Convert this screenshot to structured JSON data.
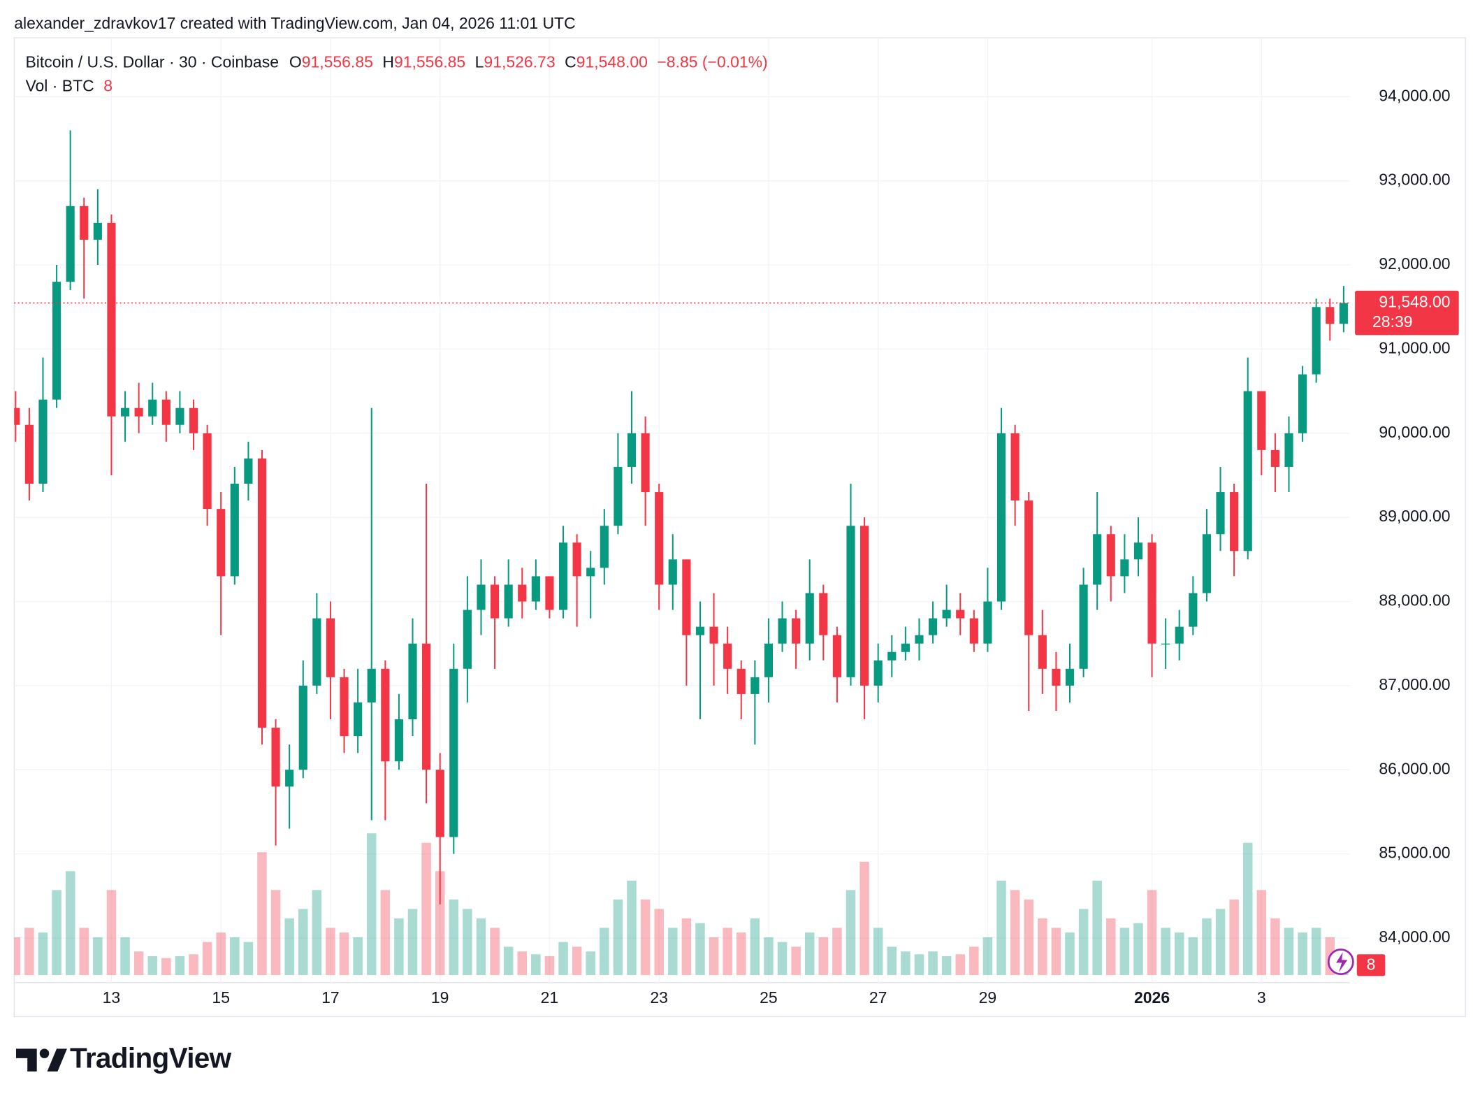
{
  "header": {
    "attribution": "alexander_zdravkov17 created with TradingView.com, Jan 04, 2026 11:01 UTC",
    "symbol": "Bitcoin / U.S. Dollar · 30 · Coinbase",
    "ohlc": [
      {
        "key": "O",
        "value": "91,556.85"
      },
      {
        "key": "H",
        "value": "91,556.85"
      },
      {
        "key": "L",
        "value": "91,526.73"
      },
      {
        "key": "C",
        "value": "91,548.00"
      }
    ],
    "change": "−8.85 (−0.01%)",
    "volume_title": "Vol · BTC"
  },
  "chart_data": {
    "type": "candlestick",
    "categories": [
      null,
      null,
      null,
      null,
      null,
      null,
      null,
      "13",
      null,
      null,
      null,
      null,
      null,
      null,
      null,
      "15",
      null,
      null,
      null,
      null,
      null,
      null,
      null,
      "17",
      null,
      null,
      null,
      null,
      null,
      null,
      null,
      "19",
      null,
      null,
      null,
      null,
      null,
      null,
      null,
      "21",
      null,
      null,
      null,
      null,
      null,
      null,
      null,
      "23",
      null,
      null,
      null,
      null,
      null,
      null,
      null,
      "25",
      null,
      null,
      null,
      null,
      null,
      null,
      null,
      "27",
      null,
      null,
      null,
      null,
      null,
      null,
      null,
      "29",
      null,
      null,
      null,
      null,
      null,
      null,
      null,
      null,
      null,
      null,
      null,
      "2026",
      null,
      null,
      null,
      null,
      null,
      null,
      null,
      "3",
      null,
      null,
      null,
      null,
      null,
      null
    ],
    "open": [
      90300,
      90100,
      89400,
      90400,
      91800,
      92700,
      92300,
      92500,
      90200,
      90300,
      90200,
      90400,
      90100,
      90300,
      90000,
      89100,
      88300,
      89400,
      89700,
      86500,
      85800,
      86000,
      87000,
      87800,
      87100,
      86400,
      86800,
      87200,
      86100,
      86600,
      87500,
      86000,
      85200,
      87200,
      87900,
      88200,
      87800,
      88200,
      88000,
      88300,
      87900,
      88700,
      88300,
      88400,
      88900,
      89600,
      90000,
      89300,
      88200,
      88500,
      87600,
      87700,
      87500,
      87200,
      86900,
      87100,
      87500,
      87800,
      87500,
      88100,
      87600,
      87100,
      88900,
      87000,
      87300,
      87400,
      87500,
      87600,
      87800,
      87900,
      87800,
      87500,
      88000,
      90000,
      89200,
      87600,
      87200,
      87000,
      87200,
      88200,
      88800,
      88300,
      88500,
      88700,
      87500,
      87500,
      87700,
      88100,
      88800,
      89300,
      88600,
      90500,
      89800,
      89600,
      90000,
      90700,
      91500,
      91300
    ],
    "high": [
      90500,
      90300,
      90900,
      92000,
      93600,
      92800,
      92900,
      92600,
      90500,
      90600,
      90600,
      90500,
      90500,
      90400,
      90100,
      89300,
      89600,
      89900,
      89800,
      86600,
      86300,
      87300,
      88100,
      88000,
      87200,
      87200,
      90300,
      87300,
      86900,
      87800,
      89400,
      86200,
      87500,
      88300,
      88500,
      88300,
      88500,
      88400,
      88500,
      88300,
      88900,
      88800,
      88600,
      89100,
      90000,
      90500,
      90200,
      89400,
      88800,
      88500,
      88000,
      88100,
      87700,
      87300,
      87300,
      87800,
      88000,
      87900,
      88500,
      88200,
      87700,
      89400,
      89000,
      87500,
      87600,
      87700,
      87800,
      88000,
      88200,
      88100,
      87900,
      88400,
      90300,
      90100,
      89300,
      87900,
      87400,
      87500,
      88400,
      89300,
      88900,
      88800,
      89000,
      88800,
      87800,
      87900,
      88300,
      89100,
      89600,
      89400,
      90900,
      90500,
      90000,
      90200,
      90800,
      91600,
      91600,
      91750
    ],
    "low": [
      89900,
      89200,
      89300,
      90300,
      91700,
      91600,
      92000,
      89500,
      89900,
      90000,
      90100,
      89900,
      90000,
      89800,
      88900,
      87600,
      88200,
      89200,
      86300,
      85100,
      85300,
      85900,
      86900,
      86600,
      86200,
      86200,
      85400,
      85400,
      86000,
      86400,
      85600,
      84400,
      85000,
      86800,
      87600,
      87200,
      87700,
      87800,
      87900,
      87800,
      87800,
      87700,
      87800,
      88200,
      88800,
      89400,
      88900,
      87900,
      87900,
      87000,
      86600,
      87000,
      86900,
      86600,
      86300,
      86800,
      87400,
      87200,
      87300,
      87300,
      86800,
      87000,
      86600,
      86800,
      87100,
      87300,
      87300,
      87500,
      87700,
      87600,
      87400,
      87400,
      87900,
      88900,
      86700,
      86900,
      86700,
      86800,
      87100,
      87900,
      88000,
      88100,
      88300,
      87100,
      87200,
      87300,
      87600,
      88000,
      88600,
      88300,
      88500,
      89500,
      89300,
      89300,
      89900,
      90600,
      91100,
      91200
    ],
    "close": [
      90100,
      89400,
      90400,
      91800,
      92700,
      92300,
      92500,
      90200,
      90300,
      90200,
      90400,
      90100,
      90300,
      90000,
      89100,
      88300,
      89400,
      89700,
      86500,
      85800,
      86000,
      87000,
      87800,
      87100,
      86400,
      86800,
      87200,
      86100,
      86600,
      87500,
      86000,
      85200,
      87200,
      87900,
      88200,
      87800,
      88200,
      88000,
      88300,
      87900,
      88700,
      88300,
      88400,
      88900,
      89600,
      90000,
      89300,
      88200,
      88500,
      87600,
      87700,
      87500,
      87200,
      86900,
      87100,
      87500,
      87800,
      87500,
      88100,
      87600,
      87100,
      88900,
      87000,
      87300,
      87400,
      87500,
      87600,
      87800,
      87900,
      87800,
      87500,
      88000,
      90000,
      89200,
      87600,
      87200,
      87000,
      87200,
      88200,
      88800,
      88300,
      88500,
      88700,
      87500,
      87500,
      87700,
      88100,
      88800,
      89300,
      88600,
      90500,
      89800,
      89600,
      90000,
      90700,
      91500,
      91300,
      91548
    ],
    "volume": [
      400,
      500,
      450,
      900,
      1100,
      500,
      400,
      900,
      400,
      250,
      200,
      180,
      200,
      220,
      350,
      450,
      400,
      350,
      1300,
      900,
      600,
      700,
      900,
      500,
      450,
      400,
      1500,
      900,
      600,
      700,
      1400,
      1100,
      800,
      700,
      600,
      500,
      300,
      250,
      220,
      200,
      350,
      300,
      250,
      500,
      800,
      1000,
      800,
      700,
      500,
      600,
      550,
      400,
      500,
      450,
      600,
      400,
      350,
      300,
      450,
      400,
      500,
      900,
      1200,
      500,
      300,
      250,
      220,
      250,
      200,
      220,
      300,
      400,
      1000,
      900,
      800,
      600,
      500,
      450,
      700,
      1000,
      600,
      500,
      550,
      900,
      500,
      450,
      400,
      600,
      700,
      800,
      1400,
      900,
      600,
      500,
      450,
      500,
      400,
      200
    ],
    "up_color": "#089981",
    "down_color": "#f23645",
    "ylim": [
      83470,
      94700
    ],
    "yticks": [
      {
        "value": 84000,
        "label": "84,000.00"
      },
      {
        "value": 85000,
        "label": "85,000.00"
      },
      {
        "value": 86000,
        "label": "86,000.00"
      },
      {
        "value": 87000,
        "label": "87,000.00"
      },
      {
        "value": 88000,
        "label": "88,000.00"
      },
      {
        "value": 89000,
        "label": "89,000.00"
      },
      {
        "value": 90000,
        "label": "90,000.00"
      },
      {
        "value": 91000,
        "label": "91,000.00"
      },
      {
        "value": 92000,
        "label": "92,000.00"
      },
      {
        "value": 93000,
        "label": "93,000.00"
      },
      {
        "value": 94000,
        "label": "94,000.00"
      }
    ],
    "grid": true,
    "last_price": {
      "value": 91548,
      "label": "91,548.00"
    },
    "countdown": "28:39",
    "last_volume": 8
  },
  "footer": {
    "logo": "TradingView"
  }
}
